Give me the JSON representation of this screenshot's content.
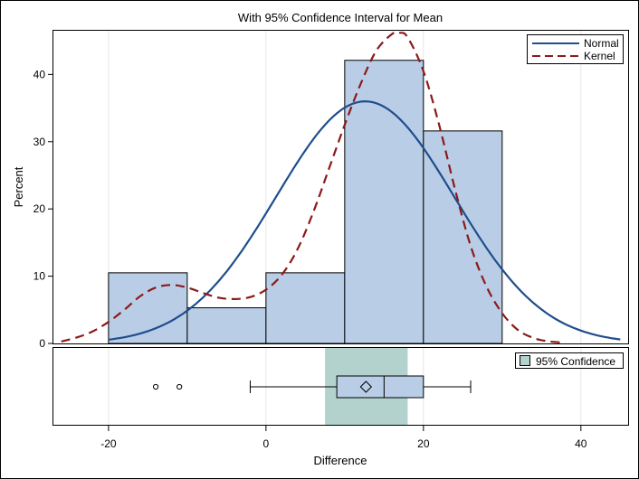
{
  "chart_data": {
    "type": "bar",
    "title": "With 95% Confidence Interval for Mean",
    "xlabel": "Difference",
    "ylabel": "Percent",
    "xlim": [
      -27,
      46
    ],
    "ylim": [
      0,
      46.5
    ],
    "xticks": [
      -20,
      0,
      20,
      40
    ],
    "yticks": [
      0,
      10,
      20,
      30,
      40
    ],
    "grid": true,
    "histogram": {
      "bins": [
        {
          "from": -20,
          "to": -10,
          "percent": 10.5
        },
        {
          "from": -10,
          "to": 0,
          "percent": 5.3
        },
        {
          "from": 0,
          "to": 10,
          "percent": 10.5
        },
        {
          "from": 10,
          "to": 20,
          "percent": 42.1
        },
        {
          "from": 20,
          "to": 30,
          "percent": 31.6
        }
      ],
      "color": "#b9cde6"
    },
    "series": [
      {
        "name": "Normal",
        "style": "solid",
        "color": "#1f4e8c",
        "mean": 12.6,
        "peak": 36,
        "sd": 11.3,
        "x_from": -20,
        "x_to": 45
      },
      {
        "name": "Kernel",
        "style": "dashed",
        "color": "#8b1a1a",
        "x": [
          -26,
          -24,
          -22,
          -20,
          -18,
          -16,
          -14,
          -12,
          -10,
          -8,
          -6,
          -4,
          -2,
          0,
          2,
          4,
          6,
          8,
          10,
          12,
          14,
          16,
          17,
          18,
          20,
          22,
          24,
          26,
          28,
          30,
          32,
          34,
          36,
          38
        ],
        "y": [
          0.3,
          0.9,
          1.8,
          3.2,
          5.0,
          7.0,
          8.3,
          8.7,
          8.3,
          7.5,
          6.8,
          6.6,
          6.9,
          8.0,
          10.2,
          14.0,
          19.5,
          26.0,
          32.5,
          38.5,
          43.5,
          46.0,
          46.2,
          45.5,
          40.5,
          32.5,
          23.0,
          14.5,
          8.5,
          4.5,
          2.0,
          0.8,
          0.3,
          0.1
        ]
      }
    ],
    "legend": {
      "placement": "top-right",
      "entries": [
        "Normal",
        "Kernel"
      ]
    },
    "boxplot": {
      "whisker_low": -2,
      "q1": 9,
      "median": 15,
      "q3": 20,
      "whisker_high": 26,
      "mean": 12.7,
      "outliers": [
        -14,
        -11
      ],
      "ci": [
        7.5,
        18
      ],
      "ci_label": "95% Confidence",
      "ci_color": "#b4d2cd",
      "legend_placement": "top-right"
    }
  }
}
